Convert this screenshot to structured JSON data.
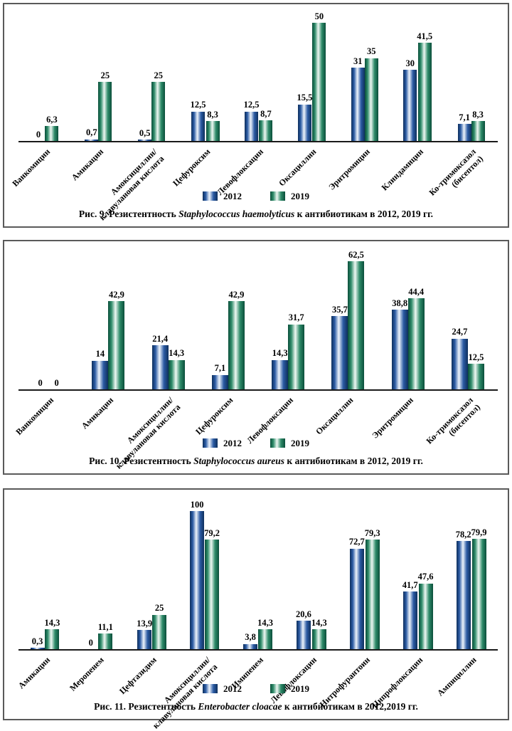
{
  "page": {
    "background": "#ffffff",
    "panel_border_color": "#5a5a5a"
  },
  "colors": {
    "axis": "#1a1a1a",
    "text": "#000000",
    "blue": {
      "edge": "#0e2f5c",
      "mid": "#2b5ba4",
      "highlight": "#eef4fb"
    },
    "green": {
      "edge": "#0a4e3a",
      "mid": "#2e8b69",
      "highlight": "#eff8f3"
    }
  },
  "legend": {
    "items": [
      {
        "label": "2012",
        "color_key": "blue"
      },
      {
        "label": "2019",
        "color_key": "green"
      }
    ]
  },
  "chart_data": [
    {
      "type": "bar",
      "caption_prefix": "Рис. 9. Резистентность ",
      "species": "Staphylococcus haemolyticus",
      "caption_suffix": " к антибиотикам в 2012, 2019 гг.",
      "xlabel": "",
      "ylabel": "",
      "ylim": [
        0,
        50
      ],
      "grid": false,
      "legend_position": "bottom",
      "value_labels": true,
      "bar_style": "cylinder-gradient",
      "categories": [
        "Ванкомицин",
        "Амикацин",
        "Амоксициллин/\nклавулановая кислота",
        "Цефуроксим",
        "Левофлоксацин",
        "Оксациллин",
        "Эритромицин",
        "Клиндамицин",
        "Ко-тримоксазол\n(бисептол)"
      ],
      "series": [
        {
          "name": "2012",
          "color_key": "blue",
          "values": [
            0,
            0.7,
            0.5,
            12.5,
            12.5,
            15.5,
            31,
            30,
            7.1
          ]
        },
        {
          "name": "2019",
          "color_key": "green",
          "values": [
            6.3,
            25,
            25,
            8.3,
            8.7,
            50,
            35,
            41.5,
            8.3
          ]
        }
      ]
    },
    {
      "type": "bar",
      "caption_prefix": "Рис. 10. Резистентность ",
      "species": "Staphylococcus aureus",
      "caption_suffix": " к антибиотикам в 2012, 2019 гг.",
      "xlabel": "",
      "ylabel": "",
      "ylim": [
        0,
        62.5
      ],
      "grid": false,
      "legend_position": "bottom",
      "value_labels": true,
      "bar_style": "cylinder-gradient",
      "categories": [
        "Ванкомицин",
        "Амикацин",
        "Амоксициллин/\nклавулановая кислота",
        "Цефуроксим",
        "Левофлоксацин",
        "Оксациллин",
        "Эритромицин",
        "Ко-тримоксазол\n(бисептол)"
      ],
      "series": [
        {
          "name": "2012",
          "color_key": "blue",
          "values": [
            0,
            14,
            21.4,
            7.1,
            14.3,
            35.7,
            38.8,
            24.7
          ]
        },
        {
          "name": "2019",
          "color_key": "green",
          "values": [
            0,
            42.9,
            14.3,
            42.9,
            31.7,
            62.5,
            44.4,
            12.5
          ]
        }
      ]
    },
    {
      "type": "bar",
      "caption_prefix": "Рис. 11. Резистентность ",
      "species": "Enterobacter cloacae",
      "caption_suffix": " к антибиотикам в 2012,2019 гг.",
      "xlabel": "",
      "ylabel": "",
      "ylim": [
        0,
        100
      ],
      "grid": false,
      "legend_position": "bottom",
      "value_labels": true,
      "bar_style": "cylinder-gradient",
      "categories": [
        "Амикацин",
        "Меропенем",
        "Цефтазидим",
        "Амоксициллин/\nклавулановая кислота",
        "Имипенем",
        "Левофлоксацин",
        "Нитрофурантоин",
        "Ципрофлоксацин",
        "Ампициллин"
      ],
      "series": [
        {
          "name": "2012",
          "color_key": "blue",
          "values": [
            0.3,
            0,
            13.9,
            100,
            3.8,
            20.6,
            72.7,
            41.7,
            78.2
          ]
        },
        {
          "name": "2019",
          "color_key": "green",
          "values": [
            14.3,
            11.1,
            25,
            79.2,
            14.3,
            14.3,
            79.3,
            47.6,
            79.9
          ]
        }
      ]
    }
  ]
}
